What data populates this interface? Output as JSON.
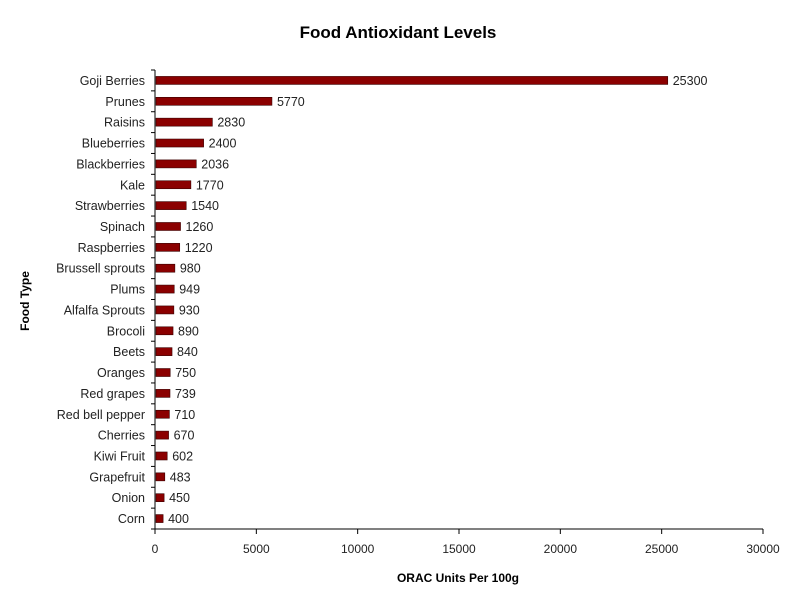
{
  "chart_data": {
    "type": "bar",
    "orientation": "horizontal",
    "title": "Food Antioxidant Levels",
    "xlabel": "ORAC Units Per 100g",
    "ylabel": "Food Type",
    "xlim": [
      0,
      30000
    ],
    "x_ticks": [
      "0",
      "5000",
      "10000",
      "15000",
      "20000",
      "25000",
      "30000"
    ],
    "categories": [
      "Goji Berries",
      "Prunes",
      "Raisins",
      "Blueberries",
      "Blackberries",
      "Kale",
      "Strawberries",
      "Spinach",
      "Raspberries",
      "Brussell sprouts",
      "Plums",
      "Alfalfa Sprouts",
      "Brocoli",
      "Beets",
      "Oranges",
      "Red grapes",
      "Red bell pepper",
      "Cherries",
      "Kiwi Fruit",
      "Grapefruit",
      "Onion",
      "Corn"
    ],
    "values": [
      25300,
      5770,
      2830,
      2400,
      2036,
      1770,
      1540,
      1260,
      1220,
      980,
      949,
      930,
      890,
      840,
      750,
      739,
      710,
      670,
      602,
      483,
      450,
      400
    ],
    "data_labels": [
      "25300",
      "5770",
      "2830",
      "2400",
      "2036",
      "1770",
      "1540",
      "1260",
      "1220",
      "980",
      "949",
      "930",
      "890",
      "840",
      "750",
      "739",
      "710",
      "670",
      "602",
      "483",
      "450",
      "400"
    ],
    "bar_color": "#8b0000",
    "grid": false,
    "legend": "none"
  }
}
